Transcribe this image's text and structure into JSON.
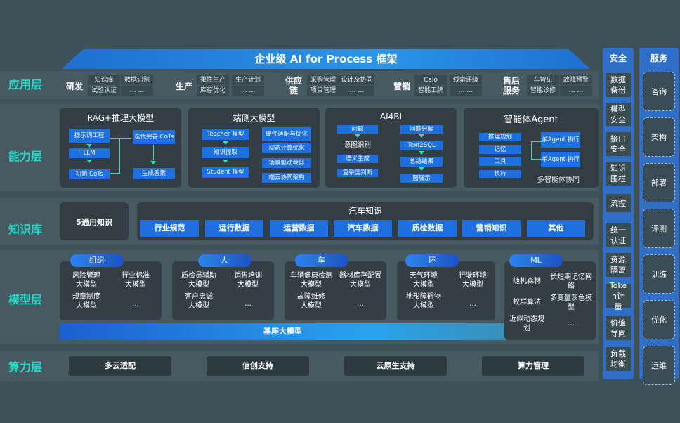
{
  "title": "企业级 AI for Process 框架",
  "layers": [
    "应用层",
    "能力层",
    "知识库",
    "模型层",
    "算力层"
  ],
  "app": [
    {
      "name": "研发",
      "items": [
        "知识库",
        "试验认证",
        "数据识别",
        "… …"
      ]
    },
    {
      "name": "生产",
      "items": [
        "柔性生产",
        "库存优化",
        "生产计划",
        "… …"
      ]
    },
    {
      "name": "供应链",
      "items": [
        "采购管理",
        "项目管理",
        "设计及协同",
        "… …"
      ]
    },
    {
      "name": "营销",
      "items": [
        "Calo",
        "智能工牌",
        "线索评级",
        "… …"
      ]
    },
    {
      "name": "售后服务",
      "items": [
        "车智见",
        "智能诊修",
        "故障预警",
        "… …"
      ]
    }
  ],
  "capability": {
    "rag": {
      "title": "RAG+推理大模型",
      "items": [
        "提示词工程",
        "LLM",
        "初始 CoTs",
        "迭代完善 CoTs",
        "生成答案"
      ]
    },
    "edge": {
      "title": "端侧大模型",
      "items": [
        "Teacher 模型",
        "知识提取",
        "Student 模型",
        "硬件适配与优化",
        "动态计算优化",
        "场景驱动裁剪",
        "端云协同架构"
      ]
    },
    "ai4bi": {
      "title": "AI4BI",
      "items": [
        "问题",
        "意图识别",
        "语义生成",
        "复杂度判断",
        "问题分解",
        "Text2SQL",
        "总结结果",
        "图展示"
      ]
    },
    "agent": {
      "title": "智能体Agent",
      "items": [
        "推理规划",
        "记忆",
        "工具",
        "执行",
        "单Agent 执行",
        "单Agent 执行"
      ],
      "footer": "多智能体协同"
    }
  },
  "knowledge": {
    "general": "5通用知识",
    "auto_title": "汽车知识",
    "items": [
      "行业规范",
      "运行数据",
      "运营数据",
      "汽车数据",
      "质检数据",
      "营销知识",
      "其他"
    ]
  },
  "models": [
    {
      "tag": "组织",
      "items": [
        "风险管理大模型",
        "行业标准大模型",
        "规章制度大模型",
        "…"
      ]
    },
    {
      "tag": "人",
      "items": [
        "质检员辅助大模型",
        "销售培训大模型",
        "客户忠诚大模型",
        "…"
      ]
    },
    {
      "tag": "车",
      "items": [
        "车辆健康检测大模型",
        "器材库存配置大模型",
        "故障维修大模型",
        "…"
      ]
    },
    {
      "tag": "环",
      "items": [
        "天气环境大模型",
        "行驶环境大模型",
        "地形障碍物大模型",
        "…"
      ]
    },
    {
      "tag": "ML",
      "items": [
        "随机森林",
        "长短期记忆网络",
        "蚁群算法",
        "多变量灰色模型",
        "近似动态规划",
        "…"
      ]
    }
  ],
  "base_model": "基座大模型",
  "compute": [
    "多云适配",
    "信创支持",
    "云原生支持",
    "算力管理"
  ],
  "security": {
    "title": "安全",
    "items": [
      "数据备份",
      "模型安全",
      "接口安全",
      "知识围栏",
      "流控",
      "统一认证",
      "资源隔离",
      "Token计量",
      "价值导向",
      "负载均衡"
    ]
  },
  "service": {
    "title": "服务",
    "items": [
      "咨询",
      "架构",
      "部署",
      "评测",
      "训练",
      "优化",
      "运维"
    ]
  },
  "colors": {
    "accent": "#1f6fe0",
    "label": "#27d9c9",
    "background": "#3e5159"
  }
}
